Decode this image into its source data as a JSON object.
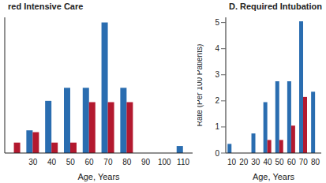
{
  "chart_data": [
    {
      "type": "bar",
      "title": "red Intensive Care",
      "x_label": "Age, Years",
      "categories": [
        null,
        "30",
        "40",
        "50",
        "60",
        "70",
        "80",
        "90",
        "100",
        "110"
      ],
      "series": [
        {
          "color": "#2a6db0",
          "values": [
            0,
            0.87,
            2.0,
            2.5,
            2.5,
            5.0,
            2.5,
            0,
            0,
            0.27
          ]
        },
        {
          "color": "#b3192f",
          "values": [
            0.4,
            0.8,
            0.4,
            0.4,
            1.95,
            1.95,
            1.95,
            0,
            0,
            0
          ]
        }
      ],
      "ylim": [
        0,
        5.2
      ],
      "tick_labels": "x",
      "grid": false
    },
    {
      "type": "bar",
      "title": "D. Required Intubation",
      "x_label": "Age, Years",
      "y_label": "Rate (Per 100 Patients)",
      "categories": [
        "10",
        "20",
        "30",
        "40",
        "50",
        "60",
        "70",
        "80"
      ],
      "series": [
        {
          "color": "#2a6db0",
          "values": [
            0.35,
            0,
            0.75,
            1.95,
            2.75,
            2.75,
            5.05,
            2.35
          ]
        },
        {
          "color": "#b3192f",
          "values": [
            0,
            0,
            0,
            0.5,
            0.5,
            1.05,
            2.15,
            0
          ]
        }
      ],
      "ylim": [
        0,
        5.2
      ],
      "yticks": [
        0,
        1,
        2,
        3,
        4,
        5
      ],
      "grid": false
    }
  ]
}
